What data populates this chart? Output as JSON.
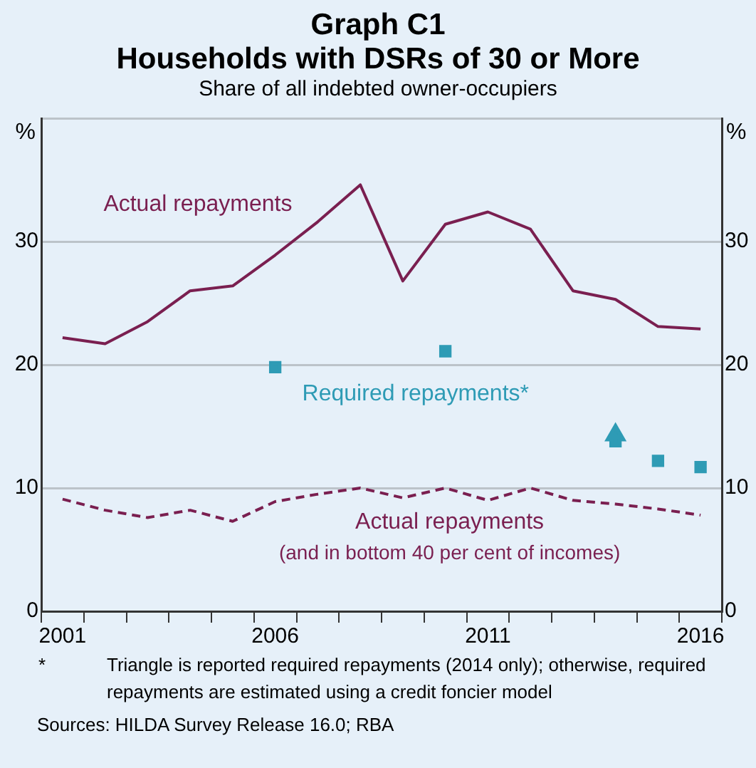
{
  "chart_data": {
    "type": "line",
    "title": "Graph C1\nHouseholds with DSRs of 30 or More",
    "subtitle": "Share of all indebted owner-occupiers",
    "ylabel": "%",
    "y2label": "%",
    "categories": [
      "2001",
      null,
      null,
      null,
      null,
      "2006",
      null,
      null,
      null,
      null,
      "2011",
      null,
      null,
      null,
      null,
      "2016"
    ],
    "series": [
      {
        "name": "Actual repayments",
        "color": "#7a1f50",
        "line_style": "solid",
        "marker": "none",
        "values": [
          22.2,
          21.7,
          23.5,
          26.0,
          26.4,
          28.9,
          31.6,
          34.6,
          26.8,
          31.4,
          32.4,
          31.0,
          26.0,
          25.3,
          23.1,
          22.9
        ]
      },
      {
        "name": "Actual repayments\n(and in bottom 40 per cent of incomes)",
        "color": "#7a1f50",
        "line_style": "dashed",
        "marker": "none",
        "values": [
          9.1,
          8.2,
          7.6,
          8.2,
          7.3,
          8.9,
          9.5,
          10.0,
          9.2,
          10.0,
          9.0,
          10.0,
          9.0,
          8.7,
          8.3,
          7.8
        ]
      },
      {
        "name": "Required repayments*",
        "type": "scatter",
        "color": "#2e9bb5",
        "marker": "square",
        "values": [
          null,
          null,
          null,
          null,
          null,
          19.8,
          null,
          null,
          null,
          21.1,
          null,
          null,
          null,
          13.8,
          12.2,
          11.7
        ]
      },
      {
        "type": "scatter",
        "color": "#2e9bb5",
        "marker": "triangle",
        "values": [
          null,
          null,
          null,
          null,
          null,
          null,
          null,
          null,
          null,
          null,
          null,
          null,
          null,
          14.3,
          null,
          null
        ]
      }
    ],
    "ylim": [
      0,
      40
    ],
    "yticks": [
      0,
      10,
      20,
      30,
      {
        "value": 40,
        "label": null
      }
    ],
    "y2lim": [
      0,
      40
    ],
    "y2ticks": [
      0,
      10,
      20,
      30,
      {
        "value": 40,
        "label": null
      }
    ],
    "grid": "y",
    "legend": false,
    "annotations": [
      "*\tTriangle is reported required repayments (2014 only); otherwise, required repayments are estimated using a credit foncier model",
      "Sources: HILDA Survey Release 16.0; RBA"
    ]
  }
}
